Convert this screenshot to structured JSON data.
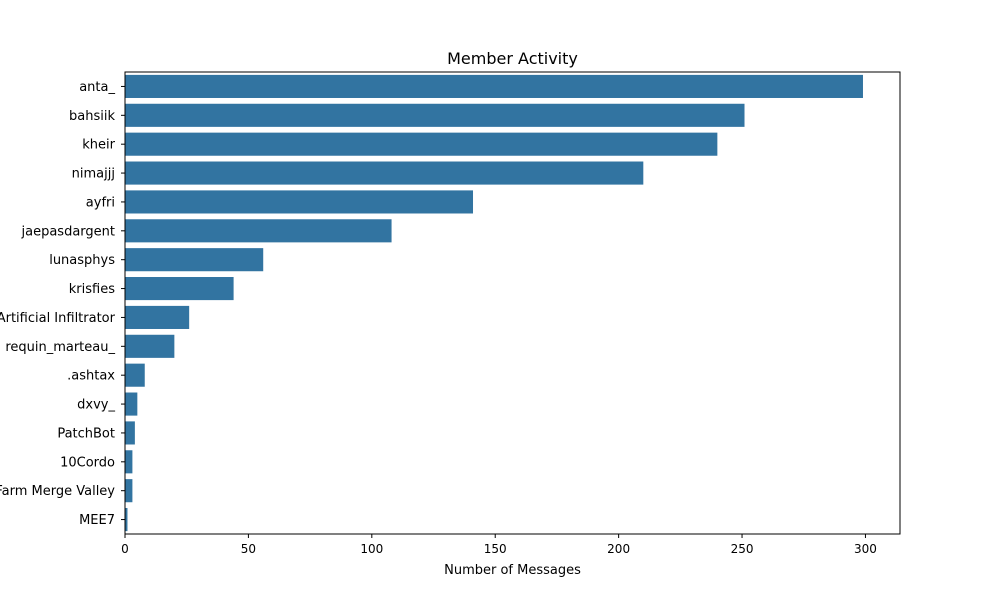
{
  "chart_data": {
    "type": "bar",
    "orientation": "horizontal",
    "title": "Member Activity",
    "xlabel": "Number of Messages",
    "ylabel": "",
    "xlim": [
      0,
      314
    ],
    "x_ticks": [
      0,
      50,
      100,
      150,
      200,
      250,
      300
    ],
    "grid": false,
    "bar_color": "#3274a1",
    "categories": [
      "anta_",
      "bahsiik",
      "kheir",
      "nimajjj",
      "ayfri",
      "jaepasdargent",
      "lunasphys",
      "krisfies",
      "Artificial Infiltrator",
      "requin_marteau_",
      ".ashtax",
      "dxvy_",
      "PatchBot",
      "10Cordo",
      "Farm Merge Valley",
      "MEE7"
    ],
    "values": [
      299,
      251,
      240,
      210,
      141,
      108,
      56,
      44,
      26,
      20,
      8,
      5,
      4,
      3,
      3,
      1
    ]
  }
}
